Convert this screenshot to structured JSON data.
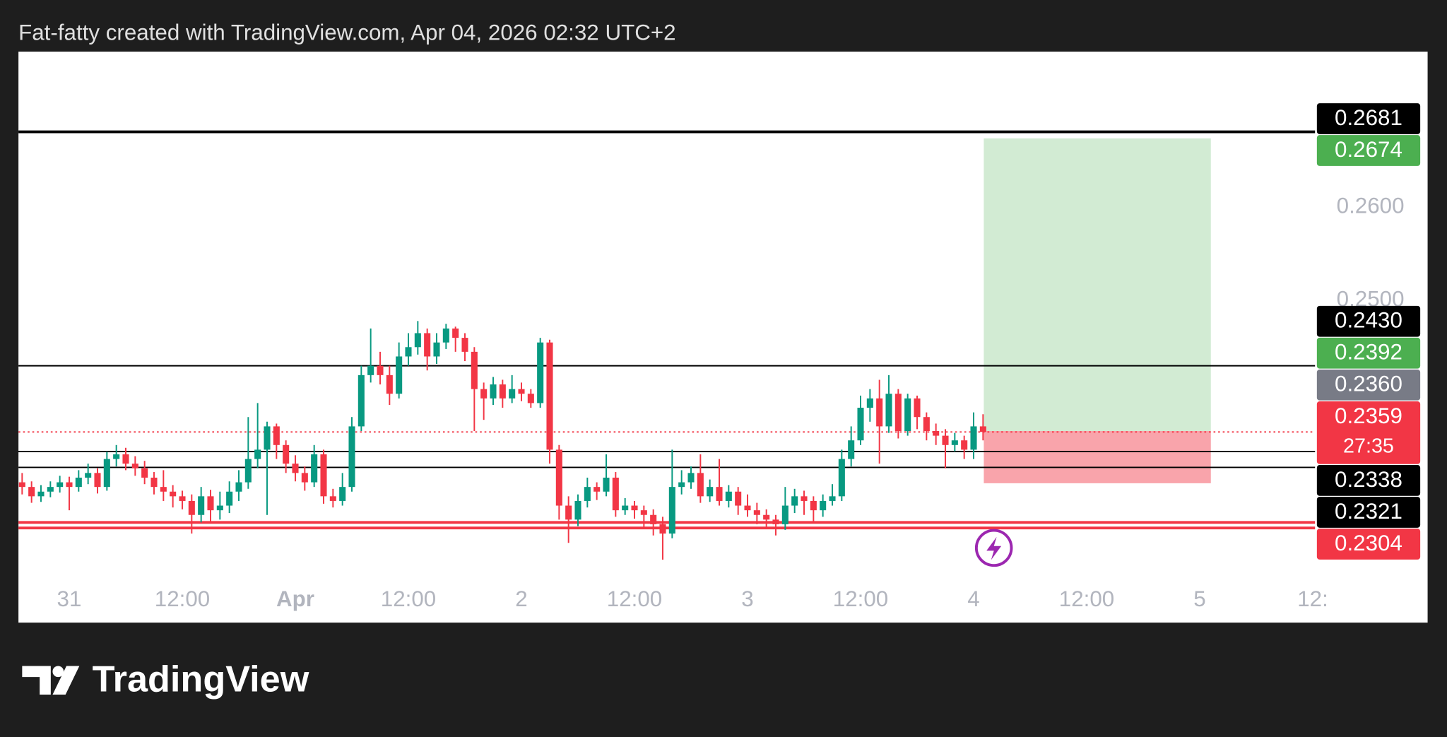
{
  "header": "Fat-fatty created with TradingView.com, Apr 04, 2026 02:32 UTC+2",
  "footer": {
    "logo_text": "TradingView"
  },
  "chart_data": {
    "type": "candlestick",
    "up_color": "#089981",
    "down_color": "#f23645",
    "xlim": [
      -5.39,
      132.24
    ],
    "ylim": [
      0.2199,
      0.2767
    ],
    "xticks": [
      {
        "value": 0,
        "label": "31"
      },
      {
        "value": 12,
        "label": "12:00"
      },
      {
        "value": 24,
        "label": "Apr"
      },
      {
        "value": 36,
        "label": "12:00"
      },
      {
        "value": 48,
        "label": "2"
      },
      {
        "value": 60,
        "label": "12:00"
      },
      {
        "value": 72,
        "label": "3"
      },
      {
        "value": 84,
        "label": "12:00"
      },
      {
        "value": 96,
        "label": "4"
      },
      {
        "value": 108,
        "label": "12:00"
      },
      {
        "value": 120,
        "label": "5"
      },
      {
        "value": 132,
        "label": "12:"
      }
    ],
    "yticks": [
      {
        "value": 0.26,
        "label": "0.2600"
      },
      {
        "value": 0.25,
        "label": "0.2500"
      }
    ],
    "x": [
      -5,
      -4,
      -3,
      -2,
      -1,
      0,
      1,
      2,
      3,
      4,
      5,
      6,
      7,
      8,
      9,
      10,
      11,
      12,
      13,
      14,
      15,
      16,
      17,
      18,
      19,
      20,
      21,
      22,
      23,
      24,
      25,
      26,
      27,
      28,
      29,
      30,
      31,
      32,
      33,
      34,
      35,
      36,
      37,
      38,
      39,
      40,
      41,
      42,
      43,
      44,
      45,
      46,
      47,
      48,
      49,
      50,
      51,
      52,
      53,
      54,
      55,
      56,
      57,
      58,
      59,
      60,
      61,
      62,
      63,
      64,
      65,
      66,
      67,
      68,
      69,
      70,
      71,
      72,
      73,
      74,
      75,
      76,
      77,
      78,
      79,
      80,
      81,
      82,
      83,
      84,
      85,
      86,
      87,
      88,
      89,
      90,
      91,
      92,
      93,
      94,
      95,
      96,
      97
    ],
    "candles": [
      [
        0.2305,
        0.2315,
        0.2292,
        0.23
      ],
      [
        0.23,
        0.2306,
        0.2283,
        0.229
      ],
      [
        0.229,
        0.2302,
        0.2284,
        0.2295
      ],
      [
        0.2295,
        0.2306,
        0.2289,
        0.23
      ],
      [
        0.23,
        0.2312,
        0.2294,
        0.2305
      ],
      [
        0.2305,
        0.2311,
        0.2275,
        0.23
      ],
      [
        0.23,
        0.2318,
        0.2295,
        0.231
      ],
      [
        0.231,
        0.2325,
        0.2303,
        0.2315
      ],
      [
        0.2315,
        0.232,
        0.2293,
        0.23
      ],
      [
        0.23,
        0.2338,
        0.2296,
        0.233
      ],
      [
        0.233,
        0.2345,
        0.2322,
        0.2335
      ],
      [
        0.2335,
        0.2342,
        0.2318,
        0.2325
      ],
      [
        0.2325,
        0.2333,
        0.2312,
        0.232
      ],
      [
        0.232,
        0.2328,
        0.2303,
        0.231
      ],
      [
        0.231,
        0.2316,
        0.2292,
        0.23
      ],
      [
        0.23,
        0.2318,
        0.2285,
        0.2295
      ],
      [
        0.2295,
        0.2302,
        0.2278,
        0.229
      ],
      [
        0.229,
        0.2296,
        0.2276,
        0.2285
      ],
      [
        0.2285,
        0.2292,
        0.225,
        0.227
      ],
      [
        0.227,
        0.23,
        0.2262,
        0.229
      ],
      [
        0.229,
        0.2297,
        0.2262,
        0.2275
      ],
      [
        0.2275,
        0.2295,
        0.2265,
        0.228
      ],
      [
        0.228,
        0.2306,
        0.2272,
        0.2295
      ],
      [
        0.2295,
        0.2318,
        0.2285,
        0.2305
      ],
      [
        0.2305,
        0.2375,
        0.2298,
        0.233
      ],
      [
        0.233,
        0.239,
        0.232,
        0.234
      ],
      [
        0.234,
        0.237,
        0.227,
        0.2365
      ],
      [
        0.2365,
        0.2368,
        0.233,
        0.2345
      ],
      [
        0.2345,
        0.235,
        0.2315,
        0.2325
      ],
      [
        0.2325,
        0.2334,
        0.2306,
        0.2315
      ],
      [
        0.2315,
        0.2322,
        0.2296,
        0.2305
      ],
      [
        0.2305,
        0.2345,
        0.23,
        0.2335
      ],
      [
        0.2335,
        0.234,
        0.2282,
        0.229
      ],
      [
        0.229,
        0.2298,
        0.2278,
        0.2285
      ],
      [
        0.2285,
        0.2315,
        0.228,
        0.23
      ],
      [
        0.23,
        0.2375,
        0.2295,
        0.2365
      ],
      [
        0.2365,
        0.243,
        0.236,
        0.242
      ],
      [
        0.242,
        0.247,
        0.2412,
        0.243
      ],
      [
        0.243,
        0.2445,
        0.241,
        0.242
      ],
      [
        0.242,
        0.243,
        0.2388,
        0.24
      ],
      [
        0.24,
        0.2455,
        0.2395,
        0.244
      ],
      [
        0.244,
        0.2465,
        0.243,
        0.245
      ],
      [
        0.245,
        0.2478,
        0.2442,
        0.2465
      ],
      [
        0.2465,
        0.247,
        0.2425,
        0.244
      ],
      [
        0.244,
        0.2465,
        0.2432,
        0.2455
      ],
      [
        0.2455,
        0.2475,
        0.2448,
        0.247
      ],
      [
        0.247,
        0.2472,
        0.2445,
        0.246
      ],
      [
        0.246,
        0.2465,
        0.2435,
        0.2445
      ],
      [
        0.2445,
        0.245,
        0.236,
        0.2405
      ],
      [
        0.2405,
        0.2412,
        0.2372,
        0.2395
      ],
      [
        0.2395,
        0.2418,
        0.2388,
        0.241
      ],
      [
        0.241,
        0.2415,
        0.2385,
        0.2395
      ],
      [
        0.2395,
        0.242,
        0.239,
        0.2405
      ],
      [
        0.2405,
        0.2412,
        0.2392,
        0.24
      ],
      [
        0.24,
        0.2405,
        0.2385,
        0.239
      ],
      [
        0.239,
        0.246,
        0.2385,
        0.2455
      ],
      [
        0.2455,
        0.2458,
        0.2325,
        0.234
      ],
      [
        0.234,
        0.2345,
        0.2265,
        0.228
      ],
      [
        0.228,
        0.229,
        0.224,
        0.2265
      ],
      [
        0.2265,
        0.2292,
        0.2258,
        0.2285
      ],
      [
        0.2285,
        0.231,
        0.2278,
        0.23
      ],
      [
        0.23,
        0.2305,
        0.2286,
        0.2295
      ],
      [
        0.2295,
        0.2335,
        0.229,
        0.231
      ],
      [
        0.231,
        0.2316,
        0.2268,
        0.2275
      ],
      [
        0.2275,
        0.2288,
        0.227,
        0.228
      ],
      [
        0.228,
        0.2285,
        0.2266,
        0.2275
      ],
      [
        0.2275,
        0.228,
        0.2255,
        0.227
      ],
      [
        0.227,
        0.2276,
        0.2248,
        0.226
      ],
      [
        0.226,
        0.2268,
        0.2222,
        0.225
      ],
      [
        0.225,
        0.234,
        0.2245,
        0.23
      ],
      [
        0.23,
        0.2318,
        0.2292,
        0.2305
      ],
      [
        0.2305,
        0.2322,
        0.2298,
        0.2315
      ],
      [
        0.2315,
        0.2335,
        0.2283,
        0.229
      ],
      [
        0.229,
        0.2308,
        0.2284,
        0.23
      ],
      [
        0.23,
        0.233,
        0.228,
        0.2285
      ],
      [
        0.2285,
        0.2302,
        0.2278,
        0.2295
      ],
      [
        0.2295,
        0.23,
        0.227,
        0.228
      ],
      [
        0.228,
        0.2292,
        0.2268,
        0.2275
      ],
      [
        0.2275,
        0.2283,
        0.226,
        0.227
      ],
      [
        0.227,
        0.2276,
        0.2255,
        0.2265
      ],
      [
        0.2265,
        0.227,
        0.2248,
        0.226
      ],
      [
        0.226,
        0.23,
        0.2254,
        0.228
      ],
      [
        0.228,
        0.2298,
        0.2272,
        0.229
      ],
      [
        0.229,
        0.2296,
        0.227,
        0.2285
      ],
      [
        0.2285,
        0.229,
        0.2262,
        0.2275
      ],
      [
        0.2275,
        0.2292,
        0.2268,
        0.2285
      ],
      [
        0.2285,
        0.2303,
        0.228,
        0.229
      ],
      [
        0.229,
        0.234,
        0.2285,
        0.233
      ],
      [
        0.233,
        0.2365,
        0.2322,
        0.235
      ],
      [
        0.235,
        0.2398,
        0.2345,
        0.2385
      ],
      [
        0.2385,
        0.2405,
        0.237,
        0.2395
      ],
      [
        0.2395,
        0.2415,
        0.2325,
        0.2365
      ],
      [
        0.2365,
        0.242,
        0.2358,
        0.24
      ],
      [
        0.24,
        0.2405,
        0.2352,
        0.236
      ],
      [
        0.236,
        0.24,
        0.2355,
        0.2395
      ],
      [
        0.2395,
        0.2398,
        0.2362,
        0.2375
      ],
      [
        0.2375,
        0.238,
        0.235,
        0.236
      ],
      [
        0.236,
        0.2368,
        0.2345,
        0.2355
      ],
      [
        0.2355,
        0.2362,
        0.232,
        0.2345
      ],
      [
        0.2345,
        0.2358,
        0.2338,
        0.235
      ],
      [
        0.235,
        0.2355,
        0.233,
        0.234
      ],
      [
        0.234,
        0.238,
        0.233,
        0.2365
      ],
      [
        0.2365,
        0.2378,
        0.235,
        0.2359
      ]
    ],
    "levels": [
      {
        "value": 0.2681,
        "color": "#000000",
        "width": 3
      },
      {
        "value": 0.243,
        "color": "#000000",
        "width": 1.5
      },
      {
        "value": 0.2359,
        "color": "#f23645",
        "width": 1.5,
        "dash": true
      },
      {
        "value": 0.2338,
        "color": "#000000",
        "width": 1.5
      },
      {
        "value": 0.2321,
        "color": "#000000",
        "width": 1.5
      },
      {
        "value": 0.2262,
        "color": "#f23645",
        "width": 3
      },
      {
        "value": 0.2256,
        "color": "#f23645",
        "width": 3
      }
    ],
    "position": {
      "x": [
        97.08,
        121.18
      ],
      "entry": 0.236,
      "target": 0.2674,
      "stop": 0.2304
    },
    "price_labels": [
      {
        "value": 0.2681,
        "color": "#000000"
      },
      {
        "value": 0.2674,
        "color": "#4caf50"
      },
      {
        "value": 0.243,
        "label": "0.2430",
        "color": "#000000"
      },
      {
        "value": 0.2392,
        "color": "#4caf50"
      },
      {
        "value": 0.236,
        "label": "0.2360",
        "color": "#787b86"
      },
      {
        "value": 0.2359,
        "color": "#f23645",
        "countdown": "27:35"
      },
      {
        "value": 0.2338,
        "color": "#000000"
      },
      {
        "value": 0.2321,
        "color": "#000000"
      },
      {
        "value": 0.2304,
        "color": "#f23645"
      }
    ]
  }
}
